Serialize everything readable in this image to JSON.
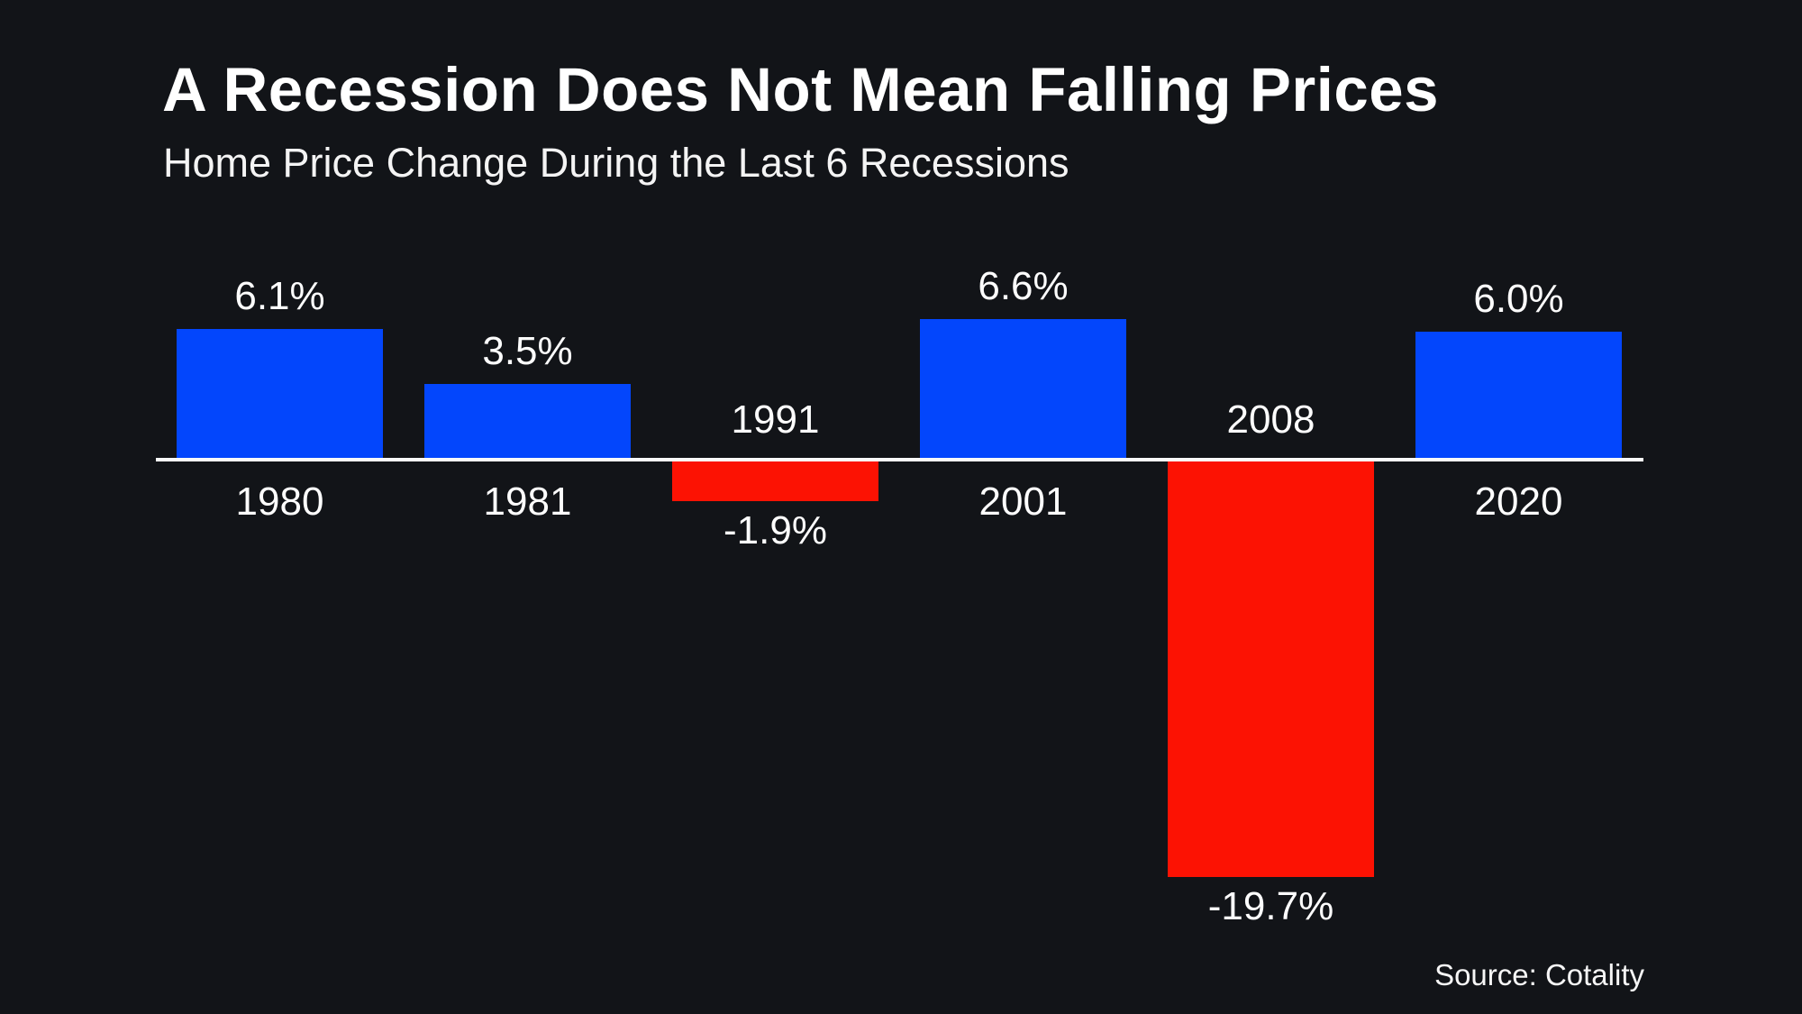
{
  "header": {
    "title": "A Recession Does Not Mean Falling Prices",
    "subtitle": "Home Price Change During the Last 6 Recessions"
  },
  "footer": {
    "source": "Source: Cotality"
  },
  "chart_data": {
    "type": "bar",
    "title": "A Recession Does Not Mean Falling Prices",
    "subtitle": "Home Price Change During the Last 6 Recessions",
    "series_name": "Home price change during recession",
    "categories": [
      "1980",
      "1981",
      "1991",
      "2001",
      "2008",
      "2020"
    ],
    "values": [
      6.1,
      3.5,
      -1.9,
      6.6,
      -19.7,
      6.0
    ],
    "value_labels": [
      "6.1%",
      "3.5%",
      "-1.9%",
      "6.6%",
      "-19.7%",
      "6.0%"
    ],
    "unit": "%",
    "ylim": [
      -19.7,
      6.6
    ],
    "positive_color": "#0346fc",
    "negative_color": "#fc1203",
    "baseline_color": "#fafafa",
    "background_color": "#121418",
    "text_color": "#ffffff",
    "gridlines": false,
    "y_axis_visible": false,
    "legend_position": "none",
    "label_placement": "positive bars: value above bar, year below baseline; negative bars: year above baseline, value below bar",
    "source": "Source: Cotality"
  }
}
